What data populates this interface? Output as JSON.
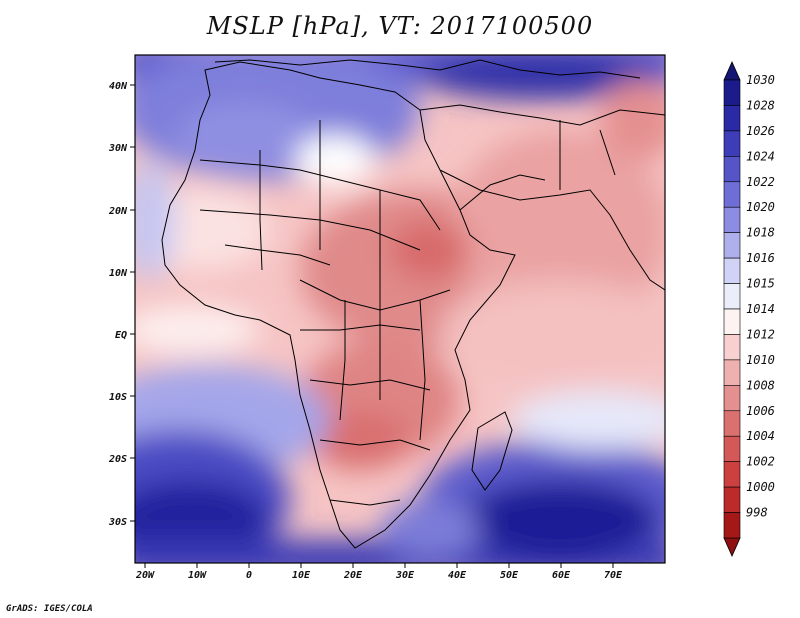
{
  "title": "MSLP [hPa], VT: 2017100500",
  "credit": "GrADS: IGES/COLA",
  "x_ticks": [
    "20W",
    "10W",
    "0",
    "10E",
    "20E",
    "30E",
    "40E",
    "50E",
    "60E",
    "70E"
  ],
  "y_ticks": [
    "40N",
    "30N",
    "20N",
    "10N",
    "EQ",
    "10S",
    "20S",
    "30S"
  ],
  "colorbar": {
    "labels": [
      "1030",
      "1028",
      "1026",
      "1024",
      "1022",
      "1020",
      "1018",
      "1016",
      "1015",
      "1014",
      "1012",
      "1010",
      "1008",
      "1006",
      "1004",
      "1002",
      "1000",
      "998"
    ],
    "colors": [
      "#1b1b8c",
      "#2a2aa6",
      "#3d3db8",
      "#5555c8",
      "#6e6ed6",
      "#8c8ce2",
      "#aeb0ec",
      "#d0d2f6",
      "#ecedfb",
      "#fdf3f3",
      "#f8d0d0",
      "#efb0b0",
      "#e59090",
      "#db7070",
      "#d45858",
      "#cc4040",
      "#bd2a2a",
      "#a51818"
    ],
    "top_color": "#151575",
    "bottom_color": "#8e1010"
  }
}
